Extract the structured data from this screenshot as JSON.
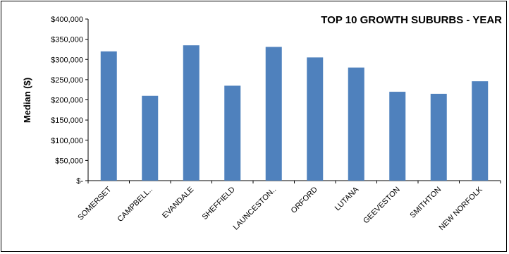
{
  "chart_data": {
    "type": "bar",
    "title": "TOP 10 GROWTH SUBURBS - YEAR",
    "xlabel": "",
    "ylabel": "Median ($)",
    "categories": [
      "SOMERSET",
      "CAMPBELL..",
      "EVANDALE",
      "SHEFFIELD",
      "LAUNCESTON..",
      "ORFORD",
      "LUTANA",
      "GEEVESTON",
      "SMITHTON",
      "NEW NORFOLK"
    ],
    "values": [
      320000,
      210000,
      335000,
      235000,
      331000,
      305000,
      280000,
      220000,
      215000,
      246000
    ],
    "ylim": [
      0,
      400000
    ],
    "yticks": [
      0,
      50000,
      100000,
      150000,
      200000,
      250000,
      300000,
      350000,
      400000
    ],
    "ytick_labels": [
      "$-",
      "$50,000",
      "$100,000",
      "$150,000",
      "$200,000",
      "$250,000",
      "$300,000",
      "$350,000",
      "$400,000"
    ],
    "bar_color": "#4f81bd",
    "grid": false,
    "legend": "none"
  }
}
